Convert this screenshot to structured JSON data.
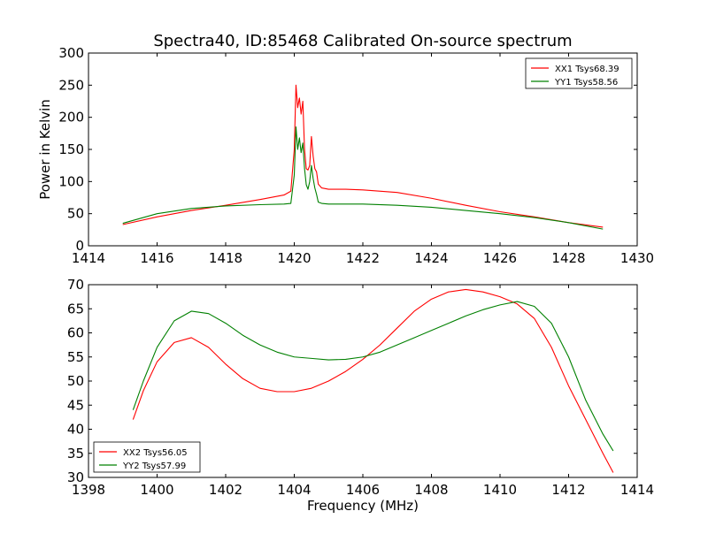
{
  "chart_data": [
    {
      "type": "line",
      "title": "Spectra40, ID:85468 Calibrated On-source spectrum",
      "xlabel": "",
      "ylabel": "Power in Kelvin",
      "xlim": [
        1414,
        1430
      ],
      "ylim": [
        0,
        300
      ],
      "xticks": [
        "1414",
        "1416",
        "1418",
        "1420",
        "1422",
        "1424",
        "1426",
        "1428",
        "1430"
      ],
      "yticks": [
        "0",
        "50",
        "100",
        "150",
        "200",
        "250",
        "300"
      ],
      "legend_position": "top-right",
      "grid": false,
      "series": [
        {
          "name": "XX1 Tsys68.39",
          "color": "#ff0000",
          "x": [
            1415.0,
            1416.0,
            1417.0,
            1418.0,
            1419.0,
            1419.7,
            1419.9,
            1420.0,
            1420.05,
            1420.1,
            1420.15,
            1420.2,
            1420.25,
            1420.3,
            1420.35,
            1420.4,
            1420.45,
            1420.5,
            1420.55,
            1420.6,
            1420.65,
            1420.7,
            1420.8,
            1421.0,
            1421.5,
            1422.0,
            1423.0,
            1424.0,
            1425.0,
            1426.0,
            1427.0,
            1428.0,
            1429.0
          ],
          "y": [
            33,
            45,
            55,
            63,
            72,
            79,
            85,
            150,
            250,
            215,
            230,
            205,
            225,
            150,
            120,
            118,
            125,
            170,
            140,
            120,
            115,
            96,
            90,
            88,
            88,
            87,
            83,
            74,
            63,
            53,
            45,
            36,
            29
          ]
        },
        {
          "name": "YY1 Tsys58.56",
          "color": "#008000",
          "x": [
            1415.0,
            1416.0,
            1417.0,
            1418.0,
            1419.0,
            1419.7,
            1419.9,
            1420.0,
            1420.05,
            1420.1,
            1420.15,
            1420.2,
            1420.25,
            1420.3,
            1420.35,
            1420.4,
            1420.45,
            1420.5,
            1420.55,
            1420.6,
            1420.65,
            1420.7,
            1420.8,
            1421.0,
            1421.5,
            1422.0,
            1423.0,
            1424.0,
            1425.0,
            1426.0,
            1427.0,
            1428.0,
            1429.0
          ],
          "y": [
            35,
            50,
            58,
            62,
            64,
            65,
            66,
            110,
            185,
            150,
            168,
            145,
            160,
            120,
            95,
            88,
            100,
            125,
            105,
            90,
            80,
            68,
            66,
            65,
            65,
            65,
            63,
            60,
            55,
            50,
            44,
            36,
            26
          ]
        }
      ]
    },
    {
      "type": "line",
      "title": "",
      "xlabel": "Frequency (MHz)",
      "ylabel": "",
      "xlim": [
        1398,
        1414
      ],
      "ylim": [
        30,
        70
      ],
      "xticks": [
        "1398",
        "1400",
        "1402",
        "1404",
        "1406",
        "1408",
        "1410",
        "1412",
        "1414"
      ],
      "yticks": [
        "30",
        "35",
        "40",
        "45",
        "50",
        "55",
        "60",
        "65",
        "70"
      ],
      "legend_position": "bottom-left",
      "grid": false,
      "series": [
        {
          "name": "XX2 Tsys56.05",
          "color": "#ff0000",
          "x": [
            1399.3,
            1399.6,
            1400.0,
            1400.5,
            1401.0,
            1401.5,
            1402.0,
            1402.5,
            1403.0,
            1403.5,
            1404.0,
            1404.5,
            1405.0,
            1405.5,
            1406.0,
            1406.5,
            1407.0,
            1407.5,
            1408.0,
            1408.5,
            1409.0,
            1409.5,
            1410.0,
            1410.5,
            1411.0,
            1411.5,
            1412.0,
            1412.5,
            1413.0,
            1413.3
          ],
          "y": [
            42,
            48,
            54,
            58,
            59,
            57,
            53.5,
            50.5,
            48.5,
            47.8,
            47.8,
            48.5,
            50,
            52,
            54.5,
            57.5,
            61,
            64.5,
            67,
            68.5,
            69,
            68.5,
            67.5,
            66,
            63,
            57,
            49,
            42,
            35,
            31
          ]
        },
        {
          "name": "YY2 Tsys57.99",
          "color": "#008000",
          "x": [
            1399.3,
            1399.6,
            1400.0,
            1400.5,
            1401.0,
            1401.5,
            1402.0,
            1402.5,
            1403.0,
            1403.5,
            1404.0,
            1404.5,
            1405.0,
            1405.5,
            1406.0,
            1406.5,
            1407.0,
            1407.5,
            1408.0,
            1408.5,
            1409.0,
            1409.5,
            1410.0,
            1410.5,
            1411.0,
            1411.5,
            1412.0,
            1412.5,
            1413.0,
            1413.3
          ],
          "y": [
            44,
            50,
            57,
            62.5,
            64.5,
            64,
            62,
            59.5,
            57.5,
            56,
            55,
            54.7,
            54.4,
            54.5,
            55,
            56,
            57.5,
            59,
            60.5,
            62,
            63.5,
            64.8,
            65.8,
            66.5,
            65.5,
            62,
            55,
            46,
            39,
            35.5
          ]
        }
      ]
    }
  ]
}
